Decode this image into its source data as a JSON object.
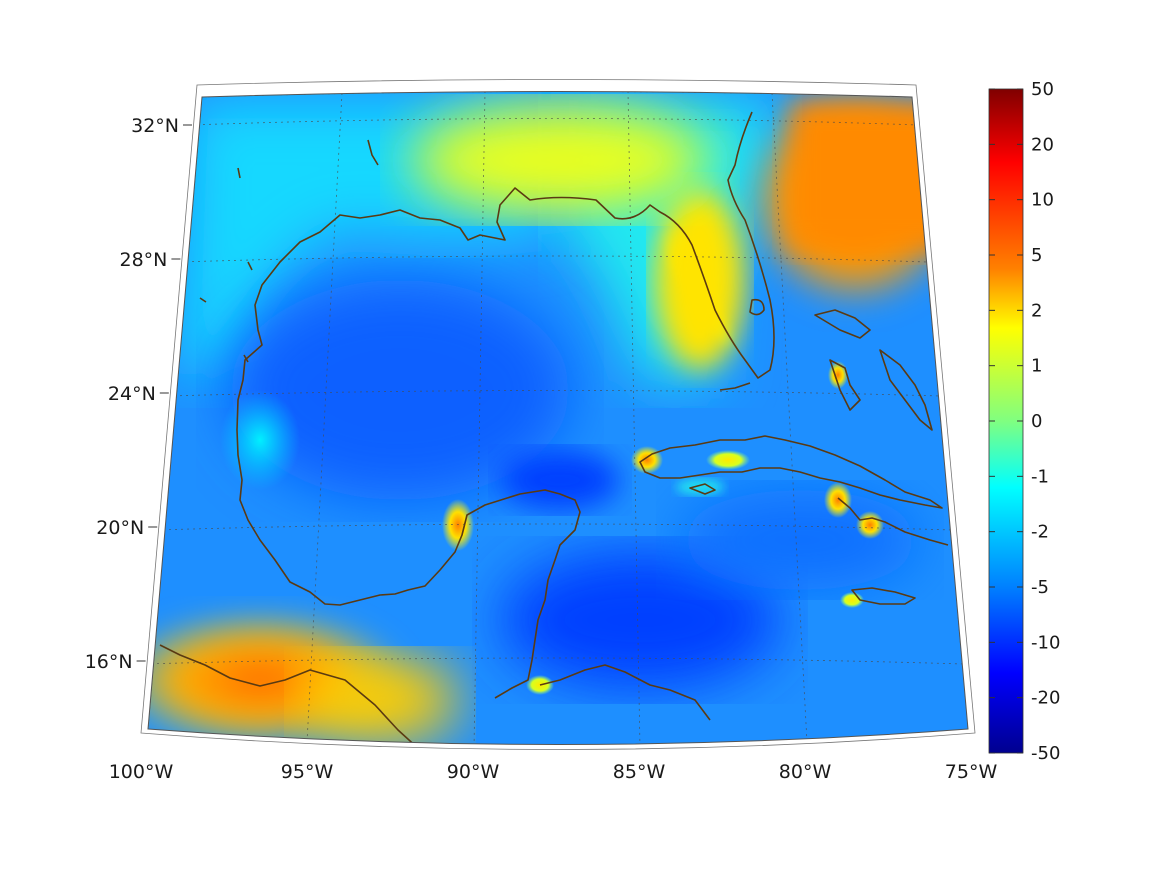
{
  "map": {
    "projection": "conic",
    "extent": {
      "lon": [
        -100,
        -75
      ],
      "lat": [
        14,
        33
      ]
    },
    "latitude_labels": [
      {
        "lat": 32,
        "text": "32°N"
      },
      {
        "lat": 28,
        "text": "28°N"
      },
      {
        "lat": 24,
        "text": "24°N"
      },
      {
        "lat": 20,
        "text": "20°N"
      },
      {
        "lat": 16,
        "text": "16°N"
      }
    ],
    "longitude_labels": [
      {
        "lon": -100,
        "text": "100°W"
      },
      {
        "lon": -95,
        "text": "95°W"
      },
      {
        "lon": -90,
        "text": "90°W"
      },
      {
        "lon": -85,
        "text": "85°W"
      },
      {
        "lon": -80,
        "text": "80°W"
      },
      {
        "lon": -75,
        "text": "75°W"
      }
    ],
    "grid": true,
    "coastline_color": "#5a3a12",
    "colormap": "jet",
    "field_regions": [
      {
        "region": "Gulf interior",
        "level": "-5"
      },
      {
        "region": "Yucatan Channel / western Caribbean",
        "level": "-10"
      },
      {
        "region": "Atlantic east of Florida",
        "level": "5"
      },
      {
        "region": "southern Mexico / Central America land",
        "level": "5"
      },
      {
        "region": "Florida peninsula",
        "level": "2"
      },
      {
        "region": "northern Gulf coast",
        "level": "1"
      },
      {
        "region": "northwest Gulf shelf",
        "level": "-1"
      }
    ]
  },
  "colorbar": {
    "tick_labels": [
      "50",
      "20",
      "10",
      "5",
      "2",
      "1",
      "0",
      "-1",
      "-2",
      "-5",
      "-10",
      "-20",
      "-50"
    ],
    "colors": {
      "top": "#800000",
      "bottom": "#00008f"
    }
  }
}
